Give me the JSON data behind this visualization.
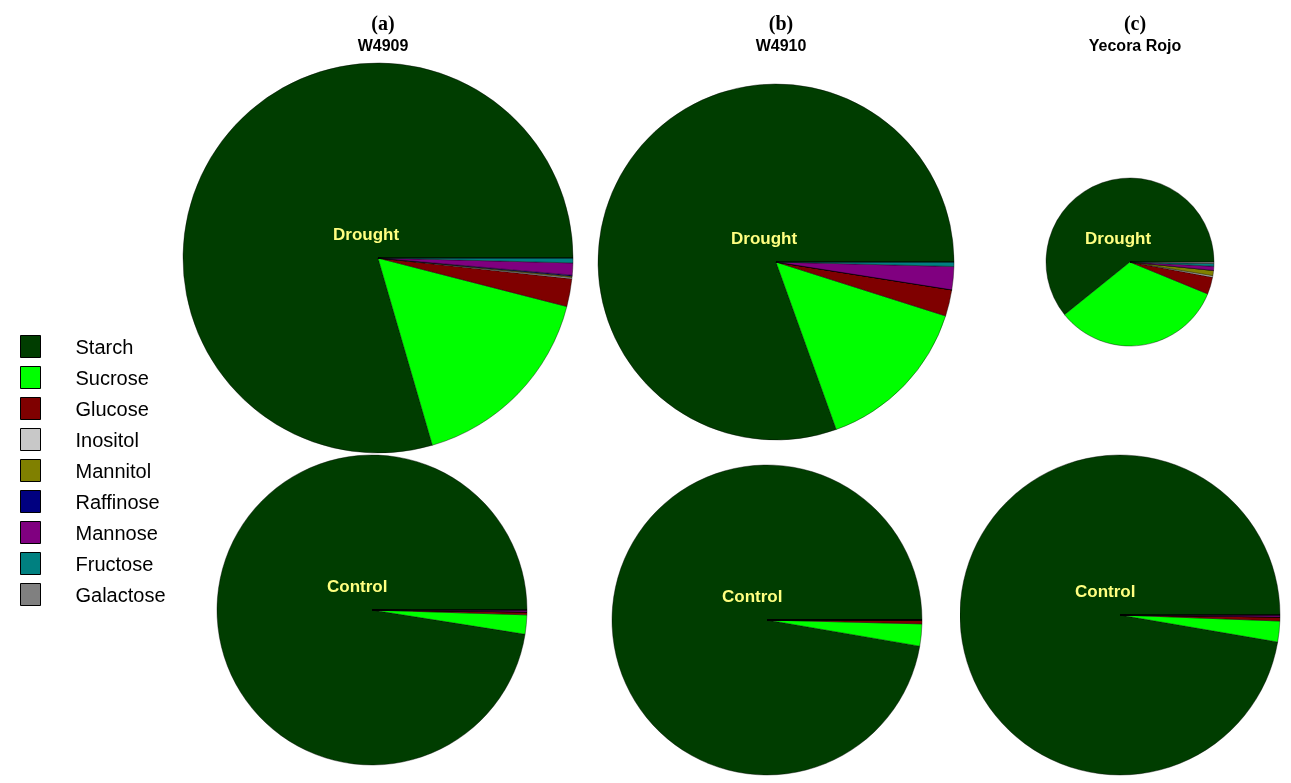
{
  "chart_data": [
    {
      "type": "pie",
      "title": "(a)",
      "subtitle": "W4909",
      "annotations": [
        "Drought"
      ],
      "legend": "left",
      "categories": [
        "Starch",
        "Sucrose",
        "Glucose",
        "Inositol",
        "Mannitol",
        "Raffinose",
        "Mannose",
        "Fructose",
        "Galactose"
      ],
      "values": [
        79.5,
        16.5,
        2.3,
        0.1,
        0.1,
        0.1,
        1.0,
        0.4,
        0
      ],
      "colors": [
        "#003d00",
        "#00ff00",
        "#7f0000",
        "#c8c8c8",
        "#808000",
        "#000080",
        "#800080",
        "#008080",
        "#808080"
      ]
    },
    {
      "type": "pie",
      "title": "(b)",
      "subtitle": "W4910",
      "annotations": [
        "Drought"
      ],
      "categories": [
        null,
        null,
        null,
        null,
        null,
        null,
        null,
        null,
        null
      ],
      "values": [
        80.5,
        14.6,
        2.4,
        0,
        0,
        0,
        2.1,
        0.4,
        0
      ],
      "colors": [
        "#003d00",
        "#00ff00",
        "#7f0000",
        "#c8c8c8",
        "#808000",
        "#000080",
        "#800080",
        "#008080",
        "#808080"
      ]
    },
    {
      "type": "pie",
      "title": "(c)",
      "subtitle": "Yecora Rojo",
      "annotations": [
        "Drought"
      ],
      "categories": [
        null,
        null,
        null,
        null,
        null,
        null,
        null,
        null,
        null
      ],
      "values": [
        60.8,
        33,
        3.3,
        0.3,
        1,
        0,
        0.8,
        0.5,
        0.3
      ],
      "colors": [
        "#003d00",
        "#00ff00",
        "#7f0000",
        "#c8c8c8",
        "#808000",
        "#000080",
        "#800080",
        "#008080",
        "#808080"
      ]
    },
    {
      "type": "pie",
      "annotations": [
        "Control"
      ],
      "categories": [
        null,
        null,
        null,
        null,
        null,
        null,
        null,
        null,
        null
      ],
      "values": [
        97.5,
        2,
        0.3,
        0,
        0,
        0,
        0.2,
        0,
        0
      ],
      "colors": [
        "#003d00",
        "#00ff00",
        "#7f0000",
        "#c8c8c8",
        "#808000",
        "#000080",
        "#800080",
        "#008080",
        "#808080"
      ]
    },
    {
      "type": "pie",
      "annotations": [
        "Control"
      ],
      "categories": [
        null,
        null,
        null,
        null,
        null,
        null,
        null,
        null,
        null
      ],
      "values": [
        97.3,
        2.3,
        0.4,
        0,
        0,
        0,
        0,
        0,
        0
      ],
      "colors": [
        "#003d00",
        "#00ff00",
        "#7f0000",
        "#c8c8c8",
        "#808000",
        "#000080",
        "#800080",
        "#008080",
        "#808080"
      ]
    },
    {
      "type": "pie",
      "annotations": [
        "Control"
      ],
      "categories": [
        null,
        null,
        null,
        null,
        null,
        null,
        null,
        null,
        null
      ],
      "values": [
        97.3,
        2.1,
        0.4,
        0,
        0,
        0,
        0.2,
        0,
        0
      ],
      "colors": [
        "#003d00",
        "#00ff00",
        "#7f0000",
        "#c8c8c8",
        "#808000",
        "#000080",
        "#800080",
        "#008080",
        "#808080"
      ]
    }
  ]
}
